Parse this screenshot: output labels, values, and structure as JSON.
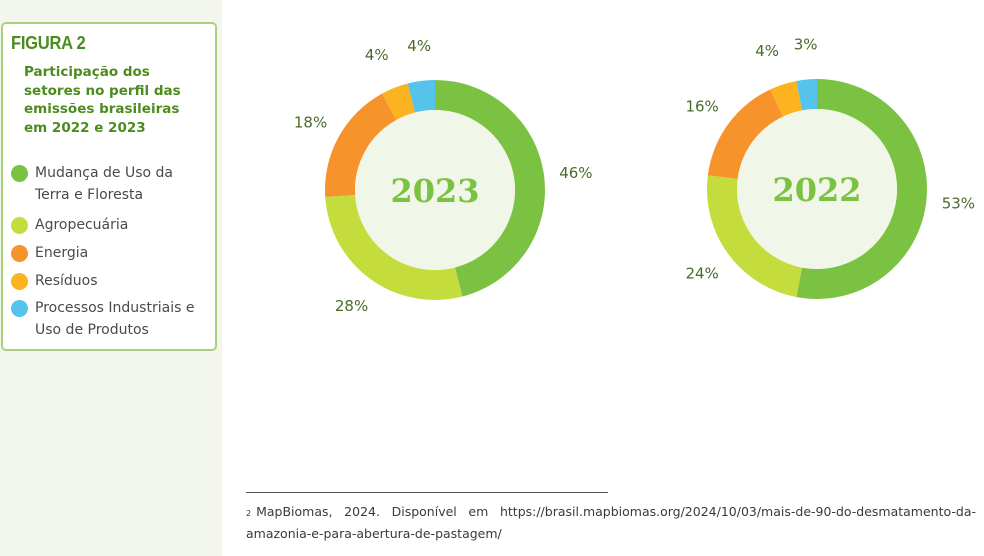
{
  "figure": {
    "label": "FIGURA 2",
    "title": "Participação dos setores no perfil das emissões brasileiras em 2022 e 2023"
  },
  "legend": [
    {
      "label": "Mudança de Uso da Terra e Floresta",
      "color": "#7cc242"
    },
    {
      "label": "Agropecuária",
      "color": "#c5dd3c"
    },
    {
      "label": "Energia",
      "color": "#f7932b"
    },
    {
      "label": "Resíduos",
      "color": "#fbb320"
    },
    {
      "label": "Processos Industriais e Uso de Produtos",
      "color": "#56c3ea"
    }
  ],
  "chart_data": [
    {
      "type": "pie",
      "center_label": "2023",
      "categories": [
        "Mudança de Uso da Terra e Floresta",
        "Agropecuária",
        "Energia",
        "Resíduos",
        "Processos Industriais e Uso de Produtos"
      ],
      "values": [
        46,
        28,
        18,
        4,
        4
      ],
      "labels": [
        "46%",
        "28%",
        "18%",
        "4%",
        "4%"
      ]
    },
    {
      "type": "pie",
      "center_label": "2022",
      "categories": [
        "Mudança de Uso da Terra e Floresta",
        "Agropecuária",
        "Energia",
        "Resíduos",
        "Processos Industriais e Uso de Produtos"
      ],
      "values": [
        53,
        24,
        16,
        4,
        3
      ],
      "labels": [
        "53%",
        "24%",
        "16%",
        "4%",
        "3%"
      ]
    }
  ],
  "footnote": {
    "number": "2",
    "text": "MapBiomas, 2024. Disponível em https://brasil.mapbiomas.org/2024/10/03/mais-de-90-do-desmatamento-da-amazonia-e-para-abertura-de-pastagem/"
  }
}
